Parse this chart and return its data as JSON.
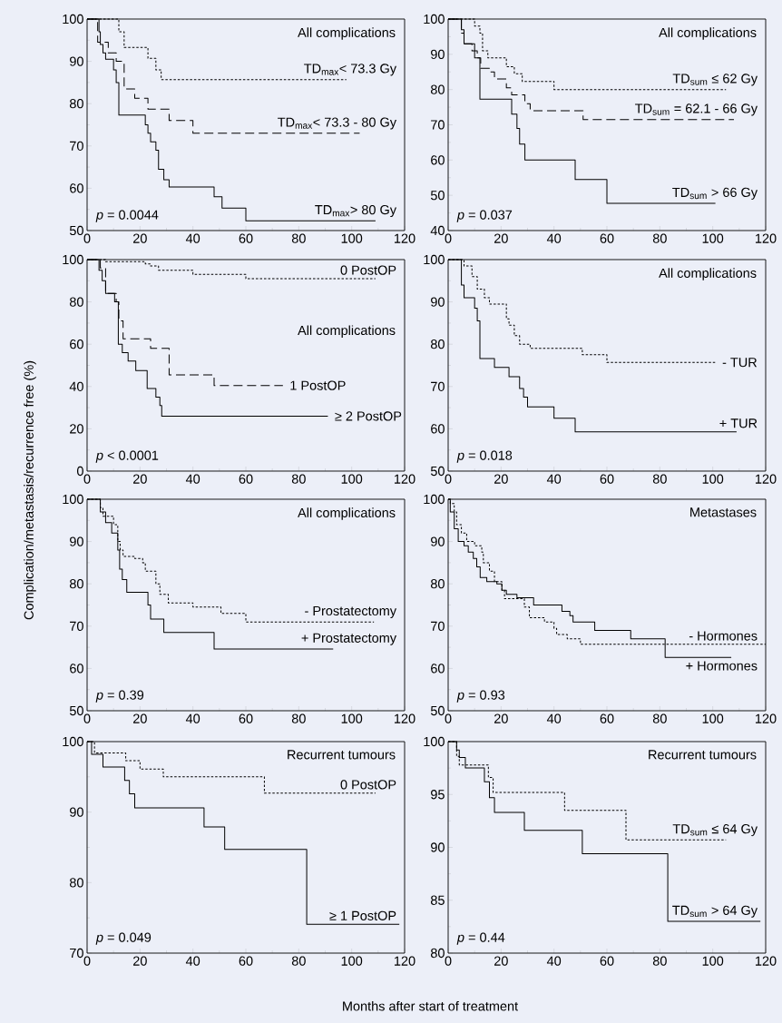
{
  "chart_data": [
    {
      "type": "step",
      "title": "All complications",
      "xlim": [
        0,
        120
      ],
      "ylim": [
        50,
        100
      ],
      "xticks": [
        0,
        20,
        40,
        60,
        80,
        100,
        120
      ],
      "yticks": [
        50,
        60,
        70,
        80,
        90,
        100
      ],
      "series": [
        {
          "name": "TD$_{max}$< 73.3 Gy",
          "color": "#000000",
          "line_style": "dotted",
          "x": [
            0,
            12,
            14,
            23,
            26,
            28,
            98
          ],
          "values": [
            100,
            97,
            93.3,
            90.7,
            88,
            85.7,
            85.7
          ]
        },
        {
          "name": "TD$_{max}$< 73.3 - 80 Gy",
          "color": "#000000",
          "line_style": "dashed",
          "x": [
            0,
            4,
            8,
            11,
            14,
            18,
            23,
            31,
            40,
            103
          ],
          "values": [
            100,
            94.5,
            92,
            90,
            83.5,
            81.3,
            78.7,
            76,
            73,
            73
          ]
        },
        {
          "name": "TD$_{max}$> 80 Gy",
          "color": "#000000",
          "line_style": "solid",
          "x": [
            0,
            4.5,
            5,
            6,
            7,
            10,
            11,
            12,
            22,
            23,
            24,
            26,
            27,
            29,
            31,
            48,
            51,
            60,
            109
          ],
          "values": [
            100,
            97,
            94,
            92,
            90.5,
            88,
            85,
            77.3,
            75,
            73,
            71,
            69,
            64.5,
            62,
            60.3,
            58,
            55.3,
            52.3,
            52.3
          ]
        }
      ],
      "annotations": [
        "*p* = 0.0044"
      ]
    },
    {
      "type": "step",
      "title": "All complications",
      "xlim": [
        0,
        120
      ],
      "ylim": [
        40,
        100
      ],
      "xticks": [
        0,
        20,
        40,
        60,
        80,
        100,
        120
      ],
      "yticks": [
        40,
        50,
        60,
        70,
        80,
        90,
        100
      ],
      "series": [
        {
          "name": "TD$_{sum}$ ≤ 62 Gy",
          "color": "#000000",
          "line_style": "dotted",
          "x": [
            0,
            10,
            12,
            13,
            15,
            22,
            25,
            28,
            40,
            105
          ],
          "values": [
            100,
            98,
            96,
            91,
            89,
            86.5,
            84.5,
            82.3,
            80,
            80
          ]
        },
        {
          "name": "TD$_{sum}$ = 62.1 - 66 Gy",
          "color": "#000000",
          "line_style": "dashed",
          "x": [
            0,
            5,
            6,
            9,
            11,
            12.3,
            15.6,
            17.5,
            22,
            24,
            29,
            31,
            51,
            108
          ],
          "values": [
            100,
            96,
            93,
            91,
            89,
            86,
            85,
            83,
            80.5,
            78.5,
            76,
            74,
            71.5,
            71.5
          ]
        },
        {
          "name": "TD$_{sum}$ > 66 Gy",
          "color": "#000000",
          "line_style": "solid",
          "x": [
            0,
            5,
            6,
            10,
            12,
            24,
            26,
            27,
            29,
            48,
            60,
            101
          ],
          "values": [
            100,
            97,
            93,
            89,
            77.3,
            73,
            69,
            64.5,
            60,
            54.5,
            47.7,
            47.7
          ]
        }
      ],
      "annotations": [
        "*p* = 0.037"
      ]
    },
    {
      "type": "step",
      "title": "All complications",
      "ylabel": "Complication/metastasis/recurrence free (%)",
      "xlim": [
        0,
        120
      ],
      "ylim": [
        0,
        100
      ],
      "xticks": [
        0,
        20,
        40,
        60,
        80,
        100,
        120
      ],
      "yticks": [
        0,
        20,
        40,
        60,
        80,
        100
      ],
      "series": [
        {
          "name": "0 PostOP",
          "color": "#000000",
          "line_style": "dotted",
          "x": [
            0,
            7,
            22,
            24,
            27,
            40,
            60,
            109
          ],
          "values": [
            100,
            99,
            98,
            97,
            95,
            93,
            91,
            91
          ]
        },
        {
          "name": "1 PostOP",
          "color": "#000000",
          "line_style": "dashed",
          "x": [
            0,
            5,
            7,
            11,
            12,
            13.6,
            24,
            31,
            48,
            74
          ],
          "values": [
            100,
            96,
            84,
            80,
            71,
            62.5,
            58,
            45.5,
            40.5,
            40.5
          ]
        },
        {
          "name": "≥ 2 PostOP",
          "color": "#000000",
          "line_style": "solid",
          "x": [
            0,
            4.5,
            5.7,
            7,
            10.4,
            11.8,
            13.3,
            15.5,
            18.4,
            22.7,
            26,
            27.5,
            28.2,
            91
          ],
          "values": [
            100,
            95,
            90,
            84,
            80,
            60,
            56,
            52,
            47.5,
            39,
            35,
            31,
            26,
            26
          ]
        }
      ],
      "annotations": [
        "*p* < 0.0001"
      ]
    },
    {
      "type": "step",
      "title": "All complications",
      "xlim": [
        0,
        120
      ],
      "ylim": [
        50,
        100
      ],
      "xticks": [
        0,
        20,
        40,
        60,
        80,
        100,
        120
      ],
      "yticks": [
        50,
        60,
        70,
        80,
        90,
        100
      ],
      "series": [
        {
          "name": "- TUR",
          "color": "#000000",
          "line_style": "dotted",
          "x": [
            0,
            6,
            9,
            11,
            13.7,
            15.6,
            22,
            23,
            25,
            27,
            31,
            50.7,
            60,
            101
          ],
          "values": [
            100,
            98.5,
            96,
            93,
            91,
            89.5,
            86,
            84.5,
            82,
            80,
            79,
            77.5,
            75.7,
            75.7
          ]
        },
        {
          "name": "+ TUR",
          "color": "#000000",
          "line_style": "solid",
          "x": [
            0,
            5,
            6,
            10,
            11,
            12,
            17.5,
            23,
            27,
            28.5,
            30,
            40,
            48,
            109
          ],
          "values": [
            100,
            94,
            91,
            88.5,
            85.5,
            76.6,
            74.5,
            72.3,
            69.5,
            67.5,
            65.2,
            62.5,
            59.3,
            59.3
          ]
        }
      ],
      "annotations": [
        "*p* = 0.018"
      ]
    },
    {
      "type": "step",
      "title": "All complications",
      "xlim": [
        0,
        120
      ],
      "ylim": [
        50,
        100
      ],
      "xticks": [
        0,
        20,
        40,
        60,
        80,
        100,
        120
      ],
      "yticks": [
        50,
        60,
        70,
        80,
        90,
        100
      ],
      "series": [
        {
          "name": "- Prostatectomy",
          "color": "#000000",
          "line_style": "dotted",
          "x": [
            0,
            5,
            6,
            10,
            11.6,
            12.5,
            13.6,
            18,
            21,
            22,
            26,
            27.5,
            30.7,
            40,
            50.6,
            60,
            108.4
          ],
          "values": [
            100,
            98,
            96,
            94,
            90,
            88,
            86.5,
            86,
            85,
            83,
            80,
            77.5,
            75.5,
            74.5,
            73,
            71,
            71
          ]
        },
        {
          "name": "+ Prostatectomy",
          "color": "#000000",
          "line_style": "solid",
          "x": [
            0,
            5,
            7,
            9.3,
            11.6,
            12.3,
            13.3,
            15,
            23,
            24,
            29,
            48,
            93
          ],
          "values": [
            100,
            97,
            94.5,
            92,
            88,
            83.5,
            81,
            78,
            75,
            71.7,
            68.5,
            64.6,
            64.6
          ]
        }
      ],
      "annotations": [
        "*p* = 0.39"
      ]
    },
    {
      "type": "step",
      "title": "Metastases",
      "xlim": [
        0,
        120
      ],
      "ylim": [
        50,
        100
      ],
      "xticks": [
        0,
        20,
        40,
        60,
        80,
        100,
        120
      ],
      "yticks": [
        50,
        60,
        70,
        80,
        90,
        100
      ],
      "series": [
        {
          "name": "- Hormones",
          "color": "#000000",
          "line_style": "dotted",
          "x": [
            0,
            0.8,
            2.3,
            3.2,
            5,
            7,
            10,
            12.7,
            13.3,
            15.6,
            17.5,
            20.3,
            21.3,
            28.8,
            30.7,
            36.4,
            40,
            41,
            45,
            50,
            120
          ],
          "values": [
            100,
            99,
            97,
            94,
            92,
            90,
            89,
            87.5,
            85,
            83,
            80.5,
            78.5,
            76.5,
            74.5,
            72,
            71,
            69.5,
            68,
            67,
            65.7,
            65.7
          ]
        },
        {
          "name": "+ Hormones",
          "color": "#000000",
          "line_style": "solid",
          "x": [
            0,
            0.8,
            2.3,
            3.8,
            6,
            7.6,
            9.5,
            10.8,
            12.1,
            14.6,
            18.4,
            20.3,
            22,
            26,
            32.3,
            43,
            46,
            47.2,
            55.4,
            69,
            82,
            107
          ],
          "values": [
            100,
            97,
            93,
            90,
            89,
            87.5,
            86,
            84,
            81.5,
            80.5,
            80,
            78.5,
            77.5,
            76.7,
            75,
            73.5,
            72.5,
            71,
            69,
            67,
            62.6,
            62.6
          ]
        }
      ],
      "annotations": [
        "*p* = 0.93"
      ]
    },
    {
      "type": "step",
      "title": "Recurrent tumours",
      "xlabel": "Months after start of treatment",
      "xlim": [
        0,
        120
      ],
      "ylim": [
        70,
        100
      ],
      "xticks": [
        0,
        20,
        40,
        60,
        80,
        100,
        120
      ],
      "yticks": [
        70,
        80,
        90,
        100
      ],
      "series": [
        {
          "name": "0 PostOP",
          "color": "#000000",
          "line_style": "dotted",
          "x": [
            0,
            2.8,
            14.6,
            20,
            28.8,
            67,
            109
          ],
          "values": [
            100,
            98.4,
            97.3,
            96.1,
            95,
            92.7,
            92.7
          ]
        },
        {
          "name": "≥ 1 PostOP",
          "color": "#000000",
          "line_style": "solid",
          "x": [
            0,
            1.7,
            6,
            14.2,
            16,
            18,
            44.2,
            52,
            83,
            118
          ],
          "values": [
            100,
            98.2,
            96.4,
            94.5,
            92.6,
            90.6,
            87.9,
            84.7,
            74.1,
            74.1
          ]
        }
      ],
      "annotations": [
        "*p* = 0.049"
      ]
    },
    {
      "type": "step",
      "title": "Recurrent tumours",
      "xlim": [
        0,
        120
      ],
      "ylim": [
        80,
        100
      ],
      "xticks": [
        0,
        20,
        40,
        60,
        80,
        100,
        120
      ],
      "yticks": [
        80,
        85,
        90,
        95,
        100
      ],
      "series": [
        {
          "name": "TD$_{sum}$ ≤ 64 Gy",
          "color": "#000000",
          "line_style": "dotted",
          "x": [
            0,
            3.2,
            4.2,
            15.2,
            17,
            44,
            67.2,
            105
          ],
          "values": [
            100,
            98.6,
            97.8,
            96.6,
            95.2,
            93.5,
            90.7,
            90.7
          ]
        },
        {
          "name": "TD$_{sum}$ > 64 Gy",
          "color": "#000000",
          "line_style": "solid",
          "x": [
            0,
            3.2,
            4.2,
            6.5,
            13.7,
            15.6,
            17.5,
            28.8,
            50.7,
            83,
            118
          ],
          "values": [
            100,
            99.2,
            98.5,
            97.5,
            96.2,
            94.7,
            93.3,
            91.6,
            89.4,
            83,
            83
          ]
        }
      ],
      "annotations": [
        "*p* = 0.44"
      ]
    }
  ]
}
